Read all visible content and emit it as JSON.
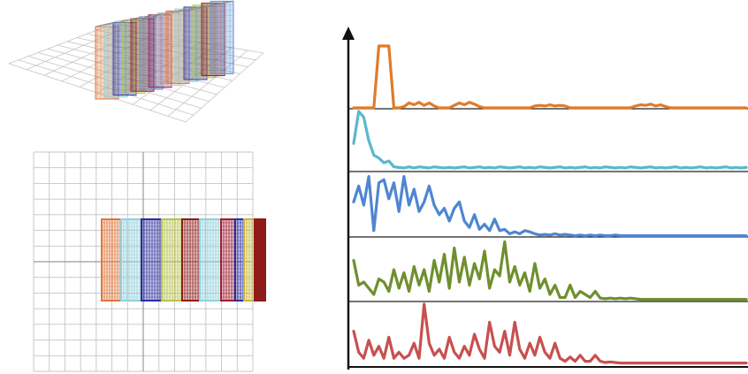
{
  "figure": {
    "cube_colors": [
      "#e0763a",
      "#8fd0dc",
      "#3a3aa8",
      "#b6c34a",
      "#8f1f22",
      "#5b8fd4",
      "#8a2a5a",
      "#c9c9c9"
    ],
    "grid_colors": {
      "grid_line": "#c4c4c4",
      "grid_strong": "#9a9a9a",
      "axis": "#111111",
      "divider": "#222222"
    },
    "slabs": [
      {
        "name": "orange-slab",
        "color": "#e0763a"
      },
      {
        "name": "cyan-slab",
        "color": "#8fd0dc"
      },
      {
        "name": "blue-slab",
        "color": "#2d2da0"
      },
      {
        "name": "olive-slab",
        "color": "#b6c34a"
      },
      {
        "name": "darkred-slab",
        "color": "#8f1a1a"
      },
      {
        "name": "lightblue-slab",
        "color": "#8fd0dc"
      },
      {
        "name": "crimson-slab",
        "color": "#a01c30"
      },
      {
        "name": "navy-slab",
        "color": "#2d2da0"
      },
      {
        "name": "yellow-slab",
        "color": "#c9b43a"
      },
      {
        "name": "maroon-slab",
        "color": "#8f1a1a"
      }
    ]
  },
  "chart_data": {
    "type": "line",
    "title": "",
    "xlabel": "",
    "ylabel": "",
    "grid": false,
    "series": [
      {
        "color": "#e07b2a",
        "values": [
          0,
          0,
          0,
          0,
          0,
          1,
          1,
          1,
          0,
          0,
          0.02,
          0.08,
          0.05,
          0.09,
          0.04,
          0.08,
          0.03,
          0,
          0,
          0,
          0.04,
          0.08,
          0.05,
          0.09,
          0.06,
          0.02,
          0,
          0,
          0,
          0,
          0,
          0,
          0,
          0,
          0,
          0,
          0.03,
          0.04,
          0.03,
          0.05,
          0.03,
          0.04,
          0.03,
          0,
          0,
          0,
          0,
          0,
          0,
          0,
          0,
          0,
          0,
          0,
          0,
          0,
          0.03,
          0.05,
          0.04,
          0.06,
          0.03,
          0.05,
          0.02,
          0,
          0,
          0,
          0,
          0,
          0,
          0,
          0,
          0,
          0,
          0,
          0,
          0,
          0,
          0,
          0
        ]
      },
      {
        "color": "#5ab8cc",
        "values": [
          0.45,
          1,
          0.9,
          0.5,
          0.25,
          0.2,
          0.12,
          0.15,
          0.05,
          0.04,
          0.03,
          0.05,
          0.03,
          0.05,
          0.04,
          0.03,
          0.05,
          0.04,
          0.03,
          0.04,
          0.03,
          0.04,
          0.05,
          0.03,
          0.04,
          0.05,
          0.03,
          0.04,
          0.03,
          0.05,
          0.04,
          0.03,
          0.04,
          0.05,
          0.03,
          0.04,
          0.03,
          0.05,
          0.04,
          0.03,
          0.04,
          0.05,
          0.03,
          0.04,
          0.03,
          0.04,
          0.05,
          0.03,
          0.04,
          0.03,
          0.05,
          0.04,
          0.03,
          0.04,
          0.03,
          0.05,
          0.04,
          0.03,
          0.04,
          0.05,
          0.03,
          0.04,
          0.03,
          0.04,
          0.05,
          0.03,
          0.04,
          0.03,
          0.04,
          0.05,
          0.03,
          0.04,
          0.03,
          0.04,
          0.05,
          0.03,
          0.04,
          0.03,
          0.04
        ]
      },
      {
        "color": "#4f86d0",
        "values": [
          0.55,
          0.8,
          0.5,
          0.95,
          0.1,
          0.85,
          0.9,
          0.6,
          0.85,
          0.4,
          0.95,
          0.5,
          0.75,
          0.4,
          0.55,
          0.8,
          0.5,
          0.35,
          0.45,
          0.25,
          0.45,
          0.55,
          0.25,
          0.15,
          0.35,
          0.12,
          0.2,
          0.1,
          0.28,
          0.1,
          0.12,
          0.05,
          0.08,
          0.05,
          0.1,
          0.08,
          0.05,
          0.03,
          0.04,
          0.03,
          0.05,
          0.03,
          0.04,
          0.03,
          0.02,
          0.03,
          0.02,
          0.03,
          0.02,
          0.03,
          0.02,
          0.02,
          0.03,
          0.02,
          0.02,
          0.02,
          0.02,
          0.02,
          0.02,
          0.02,
          0.02,
          0.02,
          0.02,
          0.02,
          0.02,
          0.02,
          0.02,
          0.02,
          0.02,
          0.02,
          0.02,
          0.02,
          0.02,
          0.02,
          0.02,
          0.02,
          0.02,
          0.02,
          0.02
        ]
      },
      {
        "color": "#6f8f2f",
        "values": [
          0.65,
          0.25,
          0.3,
          0.2,
          0.1,
          0.35,
          0.3,
          0.15,
          0.5,
          0.2,
          0.45,
          0.15,
          0.55,
          0.25,
          0.5,
          0.15,
          0.65,
          0.3,
          0.75,
          0.2,
          0.85,
          0.3,
          0.7,
          0.25,
          0.6,
          0.35,
          0.8,
          0.2,
          0.5,
          0.4,
          0.95,
          0.3,
          0.55,
          0.25,
          0.45,
          0.15,
          0.6,
          0.2,
          0.35,
          0.1,
          0.25,
          0.05,
          0.05,
          0.25,
          0.05,
          0.15,
          0.1,
          0.05,
          0.15,
          0.04,
          0.03,
          0.04,
          0.03,
          0.04,
          0.03,
          0.04,
          0.03,
          0.02,
          0.02,
          0.02,
          0.02,
          0.02,
          0.02,
          0.02,
          0.02,
          0.02,
          0.02,
          0.02,
          0.02,
          0.02,
          0.02,
          0.02,
          0.02,
          0.02,
          0.02,
          0.02,
          0.02,
          0.02,
          0.02
        ]
      },
      {
        "color": "#c85050",
        "values": [
          0.55,
          0.2,
          0.1,
          0.4,
          0.15,
          0.3,
          0.1,
          0.45,
          0.1,
          0.2,
          0.1,
          0.15,
          0.35,
          0.1,
          1,
          0.35,
          0.15,
          0.25,
          0.1,
          0.45,
          0.2,
          0.1,
          0.3,
          0.15,
          0.5,
          0.25,
          0.1,
          0.7,
          0.3,
          0.2,
          0.55,
          0.15,
          0.7,
          0.25,
          0.1,
          0.35,
          0.15,
          0.45,
          0.2,
          0.1,
          0.35,
          0.1,
          0.05,
          0.12,
          0.05,
          0.15,
          0.05,
          0.05,
          0.15,
          0.05,
          0.03,
          0.04,
          0.03,
          0.02,
          0.02,
          0.02,
          0.02,
          0.02,
          0.02,
          0.02,
          0.02,
          0.02,
          0.02,
          0.02,
          0.02,
          0.02,
          0.02,
          0.02,
          0.02,
          0.02,
          0.02,
          0.02,
          0.02,
          0.02,
          0.02,
          0.02,
          0.02,
          0.02,
          0.02
        ]
      }
    ]
  }
}
